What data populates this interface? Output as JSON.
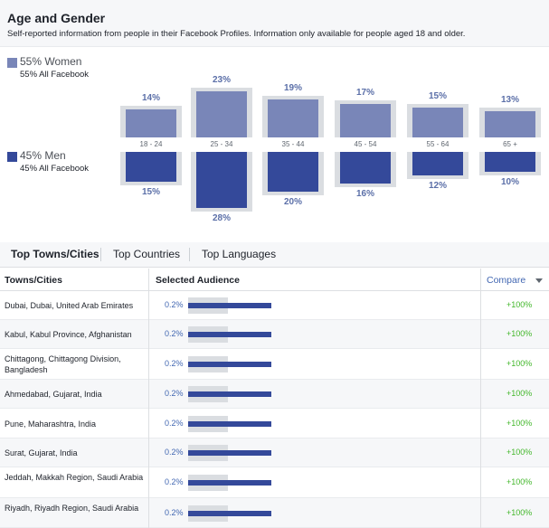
{
  "header": {
    "title": "Age and Gender",
    "subtitle": "Self-reported information from people in their Facebook Profiles. Information only available for people aged 18 and older."
  },
  "legend": {
    "women": {
      "label": "55% Women",
      "sub": "55% All Facebook"
    },
    "men": {
      "label": "45% Men",
      "sub": "45% All Facebook"
    }
  },
  "colors": {
    "women": "#7986b8",
    "men": "#34499a",
    "track": "#dadde1",
    "link": "#4267b2",
    "positive": "#42b72a"
  },
  "chart_data": {
    "type": "bar",
    "categories": [
      "18 - 24",
      "25 - 34",
      "35 - 44",
      "45 - 54",
      "55 - 64",
      "65 +"
    ],
    "series": [
      {
        "name": "Women",
        "values": [
          14,
          23,
          19,
          17,
          15,
          13
        ],
        "labels": [
          "14%",
          "23%",
          "19%",
          "17%",
          "15%",
          "13%"
        ]
      },
      {
        "name": "Men",
        "values": [
          15,
          28,
          20,
          16,
          12,
          10
        ],
        "labels": [
          "15%",
          "28%",
          "20%",
          "16%",
          "12%",
          "10%"
        ]
      }
    ]
  },
  "tabs": [
    {
      "label": "Top Towns/Cities",
      "active": true
    },
    {
      "label": "Top Countries",
      "active": false
    },
    {
      "label": "Top Languages",
      "active": false
    }
  ],
  "table": {
    "columns": {
      "city": "Towns/Cities",
      "audience": "Selected Audience",
      "compare": "Compare"
    },
    "rows": [
      {
        "city": "Dubai, Dubai, United Arab Emirates",
        "pct": "0.2%",
        "fill": 1.0,
        "compare": "+100%"
      },
      {
        "city": "Kabul, Kabul Province, Afghanistan",
        "pct": "0.2%",
        "fill": 1.0,
        "compare": "+100%"
      },
      {
        "city": "Chittagong, Chittagong Division, Bangladesh",
        "pct": "0.2%",
        "fill": 1.0,
        "compare": "+100%"
      },
      {
        "city": "Ahmedabad, Gujarat, India",
        "pct": "0.2%",
        "fill": 1.0,
        "compare": "+100%"
      },
      {
        "city": "Pune, Maharashtra, India",
        "pct": "0.2%",
        "fill": 1.0,
        "compare": "+100%"
      },
      {
        "city": "Surat, Gujarat, India",
        "pct": "0.2%",
        "fill": 1.0,
        "compare": "+100%"
      },
      {
        "city": "Jeddah, Makkah Region, Saudi Arabia",
        "pct": "0.2%",
        "fill": 1.0,
        "compare": "+100%"
      },
      {
        "city": "Riyadh, Riyadh Region, Saudi Arabia",
        "pct": "0.2%",
        "fill": 1.0,
        "compare": "+100%"
      }
    ]
  }
}
